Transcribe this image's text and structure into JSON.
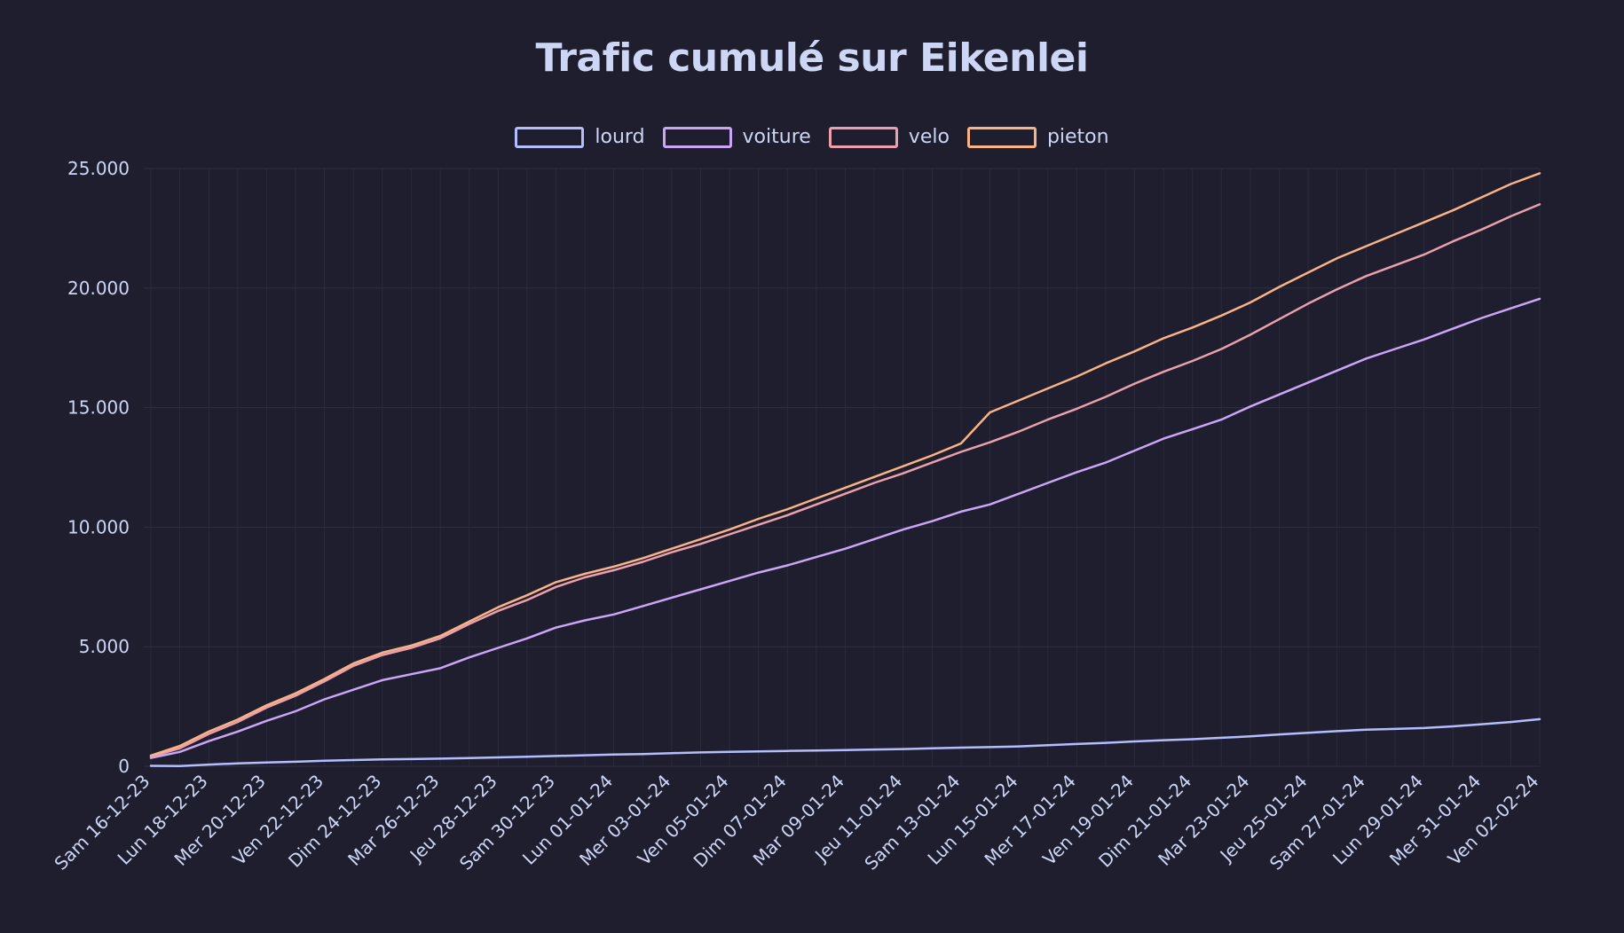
{
  "chart_data": {
    "type": "line",
    "title": "Trafic cumulé sur Eikenlei",
    "xlabel": "",
    "ylabel": "",
    "ylim": [
      0,
      25000
    ],
    "yticks": [
      {
        "value": 0,
        "label": "0"
      },
      {
        "value": 5000,
        "label": "5.000"
      },
      {
        "value": 10000,
        "label": "10.000"
      },
      {
        "value": 15000,
        "label": "15.000"
      },
      {
        "value": 20000,
        "label": "20.000"
      },
      {
        "value": 25000,
        "label": "25.000"
      }
    ],
    "x": [
      "Sam 16-12-23",
      "Dim 17-12-23",
      "Lun 18-12-23",
      "Mar 19-12-23",
      "Mer 20-12-23",
      "Jeu 21-12-23",
      "Ven 22-12-23",
      "Sam 23-12-23",
      "Dim 24-12-23",
      "Lun 25-12-23",
      "Mar 26-12-23",
      "Mer 27-12-23",
      "Jeu 28-12-23",
      "Ven 29-12-23",
      "Sam 30-12-23",
      "Dim 31-12-23",
      "Lun 01-01-24",
      "Mar 02-01-24",
      "Mer 03-01-24",
      "Jeu 04-01-24",
      "Ven 05-01-24",
      "Sam 06-01-24",
      "Dim 07-01-24",
      "Lun 08-01-24",
      "Mar 09-01-24",
      "Mer 10-01-24",
      "Jeu 11-01-24",
      "Ven 12-01-24",
      "Sam 13-01-24",
      "Dim 14-01-24",
      "Lun 15-01-24",
      "Mar 16-01-24",
      "Mer 17-01-24",
      "Jeu 18-01-24",
      "Ven 19-01-24",
      "Sam 20-01-24",
      "Dim 21-01-24",
      "Lun 22-01-24",
      "Mar 23-01-24",
      "Mer 24-01-24",
      "Jeu 25-01-24",
      "Ven 26-01-24",
      "Sam 27-01-24",
      "Dim 28-01-24",
      "Lun 29-01-24",
      "Mar 30-01-24",
      "Mer 31-01-24",
      "Jeu 01-02-24",
      "Ven 02-02-24"
    ],
    "xtick_labels": [
      "Sam 16-12-23",
      "Lun 18-12-23",
      "Mer 20-12-23",
      "Ven 22-12-23",
      "Dim 24-12-23",
      "Mar 26-12-23",
      "Jeu 28-12-23",
      "Sam 30-12-23",
      "Lun 01-01-24",
      "Mer 03-01-24",
      "Ven 05-01-24",
      "Dim 07-01-24",
      "Mar 09-01-24",
      "Jeu 11-01-24",
      "Sam 13-01-24",
      "Lun 15-01-24",
      "Mer 17-01-24",
      "Ven 19-01-24",
      "Dim 21-01-24",
      "Mar 23-01-24",
      "Jeu 25-01-24",
      "Sam 27-01-24",
      "Lun 29-01-24",
      "Mer 31-01-24",
      "Ven 02-02-24"
    ],
    "grid": true,
    "legend_position": "top-center",
    "series": [
      {
        "name": "lourd",
        "color": "#b4befe",
        "values": [
          20,
          10,
          70,
          120,
          160,
          190,
          230,
          260,
          290,
          300,
          320,
          340,
          370,
          400,
          430,
          460,
          490,
          510,
          550,
          580,
          600,
          620,
          640,
          660,
          680,
          700,
          720,
          750,
          780,
          800,
          830,
          880,
          930,
          980,
          1040,
          1090,
          1130,
          1190,
          1250,
          1330,
          1400,
          1470,
          1530,
          1560,
          1600,
          1670,
          1760,
          1850,
          1970
        ]
      },
      {
        "name": "voiture",
        "color": "#cba6f7",
        "values": [
          350,
          600,
          1050,
          1450,
          1900,
          2300,
          2800,
          3200,
          3600,
          3850,
          4100,
          4550,
          4950,
          5350,
          5800,
          6100,
          6350,
          6700,
          7050,
          7400,
          7750,
          8100,
          8400,
          8750,
          9100,
          9500,
          9900,
          10250,
          10650,
          10950,
          11400,
          11850,
          12300,
          12700,
          13200,
          13700,
          14100,
          14500,
          15050,
          15550,
          16050,
          16550,
          17050,
          17450,
          17850,
          18300,
          18750,
          19150,
          19550
        ]
      },
      {
        "name": "velo",
        "color": "#eba0ac",
        "values": [
          400,
          750,
          1350,
          1850,
          2450,
          2950,
          3550,
          4200,
          4650,
          4950,
          5350,
          5950,
          6500,
          6950,
          7500,
          7900,
          8200,
          8550,
          8950,
          9300,
          9700,
          10100,
          10500,
          10950,
          11400,
          11850,
          12250,
          12700,
          13150,
          13550,
          14000,
          14500,
          14950,
          15450,
          16000,
          16500,
          16950,
          17450,
          18050,
          18700,
          19350,
          19950,
          20500,
          20950,
          21400,
          21950,
          22450,
          23000,
          23500
        ]
      },
      {
        "name": "pieton",
        "color": "#fab387",
        "values": [
          450,
          850,
          1450,
          1950,
          2550,
          3050,
          3650,
          4300,
          4750,
          5050,
          5450,
          6050,
          6650,
          7150,
          7700,
          8050,
          8350,
          8700,
          9100,
          9500,
          9900,
          10350,
          10750,
          11200,
          11650,
          12100,
          12550,
          13000,
          13500,
          14800,
          15300,
          15800,
          16300,
          16850,
          17350,
          17900,
          18350,
          18850,
          19400,
          20050,
          20650,
          21250,
          21750,
          22250,
          22750,
          23250,
          23800,
          24350,
          24800
        ]
      }
    ]
  }
}
